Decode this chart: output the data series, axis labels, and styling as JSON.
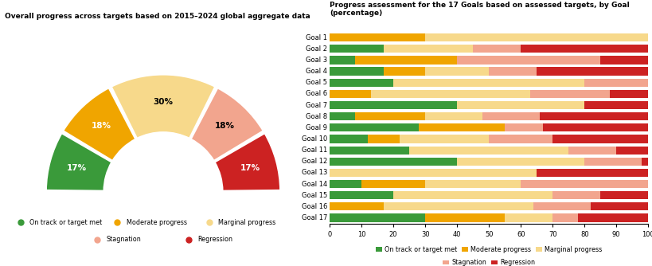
{
  "left_title": "Overall progress across targets based on 2015–2024 global aggregate data",
  "right_title": "Progress assessment for the 17 Goals based on assessed targets, by Goal\n(percentage)",
  "donut": {
    "values": [
      17,
      18,
      30,
      18,
      17
    ],
    "labels": [
      "17%",
      "18%",
      "30%",
      "18%",
      "17%"
    ],
    "colors": [
      "#3a9a3a",
      "#f0a500",
      "#f7d98b",
      "#f2a58e",
      "#cc2222"
    ],
    "label_colors": [
      "white",
      "white",
      "black",
      "black",
      "white"
    ]
  },
  "legend_labels": [
    "On track or target met",
    "Moderate progress",
    "Marginal progress",
    "Stagnation",
    "Regression"
  ],
  "legend_colors": [
    "#3a9a3a",
    "#f0a500",
    "#f7d98b",
    "#f2a58e",
    "#cc2222"
  ],
  "goals": [
    "Goal 1",
    "Goal 2",
    "Goal 3",
    "Goal 4",
    "Goal 5",
    "Goal 6",
    "Goal 7",
    "Goal 8",
    "Goal 9",
    "Goal 10",
    "Goal 11",
    "Goal 12",
    "Goal 13",
    "Goal 14",
    "Goal 15",
    "Goal 16",
    "Goal 17"
  ],
  "bar_data": {
    "on_track": [
      0,
      17,
      8,
      17,
      20,
      0,
      40,
      8,
      28,
      12,
      25,
      40,
      0,
      10,
      20,
      0,
      30
    ],
    "moderate": [
      30,
      0,
      32,
      13,
      0,
      13,
      0,
      22,
      27,
      10,
      0,
      0,
      0,
      20,
      0,
      17,
      25
    ],
    "marginal": [
      70,
      28,
      0,
      20,
      60,
      50,
      40,
      18,
      0,
      28,
      50,
      40,
      65,
      30,
      50,
      47,
      15
    ],
    "stagnation": [
      0,
      15,
      45,
      15,
      20,
      25,
      0,
      18,
      12,
      20,
      15,
      18,
      0,
      40,
      15,
      18,
      8
    ],
    "regression": [
      0,
      40,
      15,
      35,
      0,
      12,
      20,
      34,
      33,
      30,
      10,
      2,
      35,
      0,
      15,
      18,
      22
    ]
  },
  "bar_colors": [
    "#3a9a3a",
    "#f0a500",
    "#f7d98b",
    "#f2a58e",
    "#cc2222"
  ],
  "background_color": "#ffffff"
}
